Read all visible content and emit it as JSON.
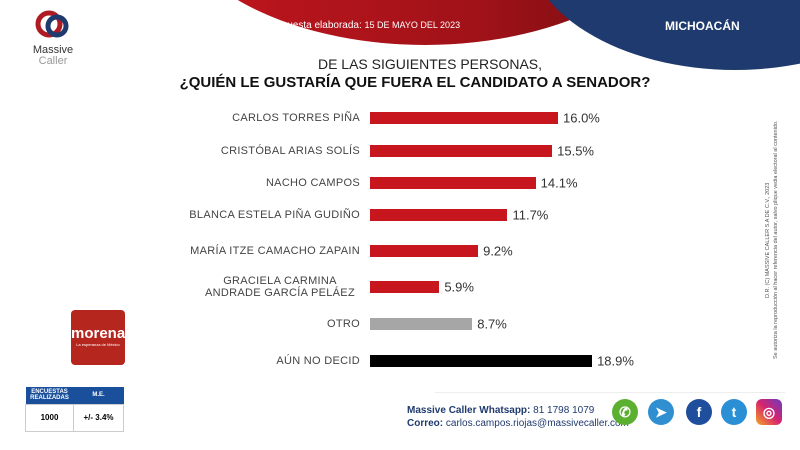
{
  "header": {
    "survey_label": "Última encuesta elaborada:",
    "survey_date": "15 DE MAYO DEL 2023",
    "region": "MICHOACÁN"
  },
  "logo": {
    "line1": "Massive",
    "line2": "Caller"
  },
  "party": {
    "name": "morena",
    "tagline": "La esperanza de México"
  },
  "stats": {
    "col1": "ENCUESTAS REALIZADAS",
    "col2": "M.E.",
    "surveys": "1000",
    "margin": "+/- 3.4%"
  },
  "contact": {
    "whatsapp_label": "Massive Caller Whatsapp:",
    "whatsapp": "81 1798 1079",
    "email_label": "Correo:",
    "email": "carlos.campos.riojas@massivecaller.com"
  },
  "social": [
    "whatsapp-icon",
    "telegram-icon",
    "facebook-icon",
    "twitter-icon",
    "instagram-icon"
  ],
  "copyright": {
    "line1": "D.R. (C) MASSIVE CALLER S.A DE C.V., 2023",
    "line2": "Se autoriza la reproducción al hacer referencia del autor, salvo plique vedia electoral al contenido."
  },
  "chart_data": {
    "type": "bar",
    "orientation": "horizontal",
    "title": "DE LAS SIGUIENTES PERSONAS,",
    "subtitle": "¿QUIÉN LE GUSTARÍA QUE FUERA EL CANDIDATO  A SENADOR?",
    "categories": [
      "CARLOS TORRES PIÑA",
      "CRISTÓBAL ARIAS SOLÍS",
      "NACHO CAMPOS",
      "BLANCA ESTELA PIÑA GUDIÑO",
      "MARÍA ITZE CAMACHO ZAPAIN",
      "GRACIELA CARMINA ANDRADE GARCÍA PELÁEZ",
      "OTRO",
      "AÚN NO DECID"
    ],
    "values": [
      16.0,
      15.5,
      14.1,
      11.7,
      9.2,
      5.9,
      8.7,
      18.9
    ],
    "labels": [
      "16.0%",
      "15.5%",
      "14.1%",
      "11.7%",
      "9.2%",
      "5.9%",
      "8.7%",
      "18.9%"
    ],
    "colors": [
      "#c8161e",
      "#c8161e",
      "#c8161e",
      "#c8161e",
      "#c8161e",
      "#c8161e",
      "#a6a6a6",
      "#000000"
    ],
    "unit": "%"
  }
}
